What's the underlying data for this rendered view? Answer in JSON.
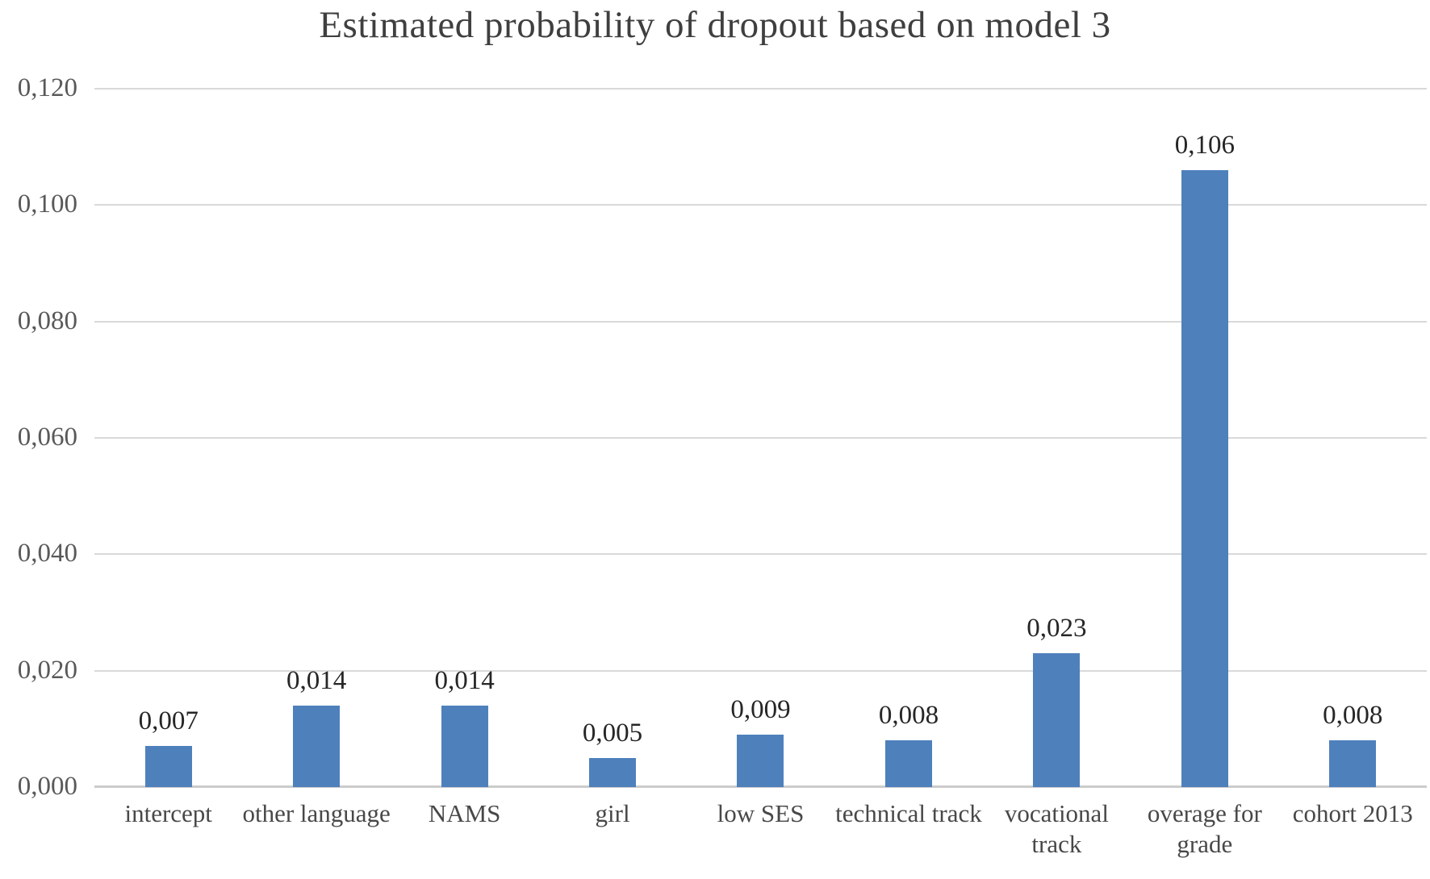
{
  "chart_data": {
    "type": "bar",
    "title": "Estimated probability of dropout based on model 3",
    "categories": [
      "intercept",
      "other language",
      "NAMS",
      "girl",
      "low SES",
      "technical track",
      "vocational track",
      "overage for grade",
      "cohort 2013"
    ],
    "values": [
      0.007,
      0.014,
      0.014,
      0.005,
      0.009,
      0.008,
      0.023,
      0.106,
      0.008
    ],
    "value_labels": [
      "0,007",
      "0,014",
      "0,014",
      "0,005",
      "0,009",
      "0,008",
      "0,023",
      "0,106",
      "0,008"
    ],
    "xlabel": "",
    "ylabel": "",
    "ylim": [
      0,
      0.12
    ],
    "yticks": [
      {
        "value": 0.0,
        "label": "0,000"
      },
      {
        "value": 0.02,
        "label": "0,020"
      },
      {
        "value": 0.04,
        "label": "0,040"
      },
      {
        "value": 0.06,
        "label": "0,060"
      },
      {
        "value": 0.08,
        "label": "0,080"
      },
      {
        "value": 0.1,
        "label": "0,100"
      },
      {
        "value": 0.12,
        "label": "0,120"
      }
    ],
    "grid": true,
    "legend": false,
    "decimal_separator": ",",
    "colors": {
      "bar": "#4e80bc",
      "gridline": "#d9d9d9",
      "title_text": "#3f3f3f",
      "axis_text": "#595959",
      "value_text": "#262626",
      "background": "#ffffff"
    }
  }
}
